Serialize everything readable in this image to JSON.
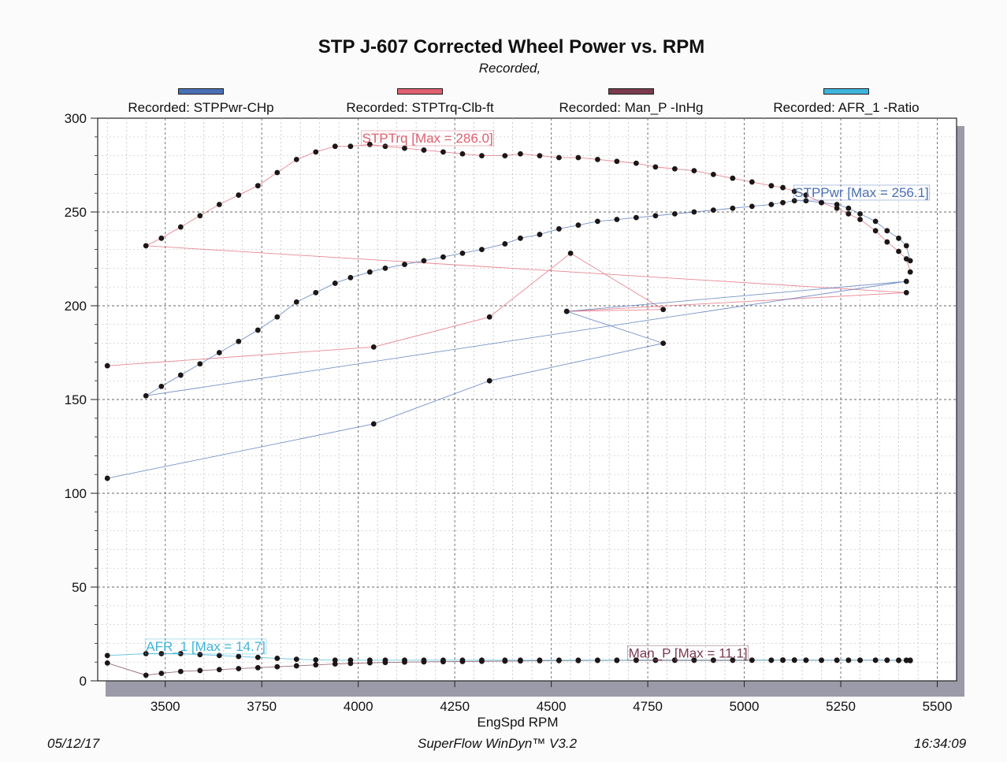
{
  "chart_data": {
    "type": "scatter",
    "title": "STP J-607 Corrected Wheel Power vs. RPM",
    "subtitle": "Recorded,",
    "xlabel": "EngSpd RPM",
    "ylabel": "",
    "xlim": [
      3325,
      5550
    ],
    "ylim": [
      0,
      300
    ],
    "x_ticks": [
      3500,
      3750,
      4000,
      4250,
      4500,
      4750,
      5000,
      5250,
      5500
    ],
    "y_ticks": [
      0,
      50,
      100,
      150,
      200,
      250,
      300
    ],
    "grid": true,
    "legend_position": "top",
    "legend": [
      {
        "label": "Recorded: STPPwr-CHp",
        "color": "#4a6fb5"
      },
      {
        "label": "Recorded: STPTrq-Clb-ft",
        "color": "#e06070"
      },
      {
        "label": "Recorded: Man_P -InHg",
        "color": "#7a3b4e"
      },
      {
        "label": "Recorded: AFR_1 -Ratio",
        "color": "#3fb4dc"
      }
    ],
    "annotations": [
      {
        "text": "STPTrq [Max = 286.0]",
        "x": 4010,
        "y": 287,
        "color": "#e06070"
      },
      {
        "text": "STPPwr [Max = 256.1]",
        "x": 5130,
        "y": 258,
        "color": "#4a6fb5"
      },
      {
        "text": "AFR_1  [Max = 14.7]",
        "x": 3450,
        "y": 16,
        "color": "#3fb4dc"
      },
      {
        "text": "Man_P  [Max = 11.1]",
        "x": 4700,
        "y": 12.5,
        "color": "#7a3b4e"
      }
    ],
    "series": [
      {
        "name": "STPTrq",
        "color": "#e06070",
        "points": [
          [
            3350,
            168
          ],
          [
            4040,
            178
          ],
          [
            4340,
            194
          ],
          [
            4550,
            228
          ],
          [
            4790,
            198
          ],
          [
            4540,
            197
          ],
          [
            5420,
            207
          ],
          [
            3450,
            232
          ],
          [
            3490,
            236
          ],
          [
            3540,
            242
          ],
          [
            3590,
            248
          ],
          [
            3640,
            254
          ],
          [
            3690,
            259
          ],
          [
            3740,
            264
          ],
          [
            3790,
            271
          ],
          [
            3840,
            278
          ],
          [
            3890,
            282
          ],
          [
            3940,
            285
          ],
          [
            3980,
            285
          ],
          [
            4030,
            286
          ],
          [
            4070,
            285
          ],
          [
            4120,
            284
          ],
          [
            4170,
            283
          ],
          [
            4220,
            282
          ],
          [
            4270,
            281
          ],
          [
            4320,
            280
          ],
          [
            4380,
            280
          ],
          [
            4420,
            281
          ],
          [
            4470,
            280
          ],
          [
            4520,
            279
          ],
          [
            4570,
            279
          ],
          [
            4620,
            278
          ],
          [
            4670,
            277
          ],
          [
            4720,
            276
          ],
          [
            4770,
            274
          ],
          [
            4820,
            273
          ],
          [
            4870,
            272
          ],
          [
            4920,
            270
          ],
          [
            4970,
            268
          ],
          [
            5020,
            266
          ],
          [
            5070,
            264
          ],
          [
            5100,
            263
          ],
          [
            5130,
            261
          ],
          [
            5160,
            259
          ],
          [
            5200,
            255
          ],
          [
            5240,
            252
          ],
          [
            5270,
            249
          ],
          [
            5300,
            246
          ],
          [
            5340,
            240
          ],
          [
            5370,
            234
          ],
          [
            5400,
            229
          ],
          [
            5420,
            225
          ],
          [
            5430,
            218
          ]
        ]
      },
      {
        "name": "STPPwr",
        "color": "#4a6fb5",
        "points": [
          [
            3350,
            108
          ],
          [
            4040,
            137
          ],
          [
            4340,
            160
          ],
          [
            4790,
            180
          ],
          [
            4540,
            197
          ],
          [
            5420,
            213
          ],
          [
            3450,
            152
          ],
          [
            3490,
            157
          ],
          [
            3540,
            163
          ],
          [
            3590,
            169
          ],
          [
            3640,
            175
          ],
          [
            3690,
            181
          ],
          [
            3740,
            187
          ],
          [
            3790,
            194
          ],
          [
            3840,
            202
          ],
          [
            3890,
            207
          ],
          [
            3940,
            212
          ],
          [
            3980,
            215
          ],
          [
            4030,
            218
          ],
          [
            4070,
            220
          ],
          [
            4120,
            222
          ],
          [
            4170,
            224
          ],
          [
            4220,
            226
          ],
          [
            4270,
            228
          ],
          [
            4320,
            230
          ],
          [
            4380,
            233
          ],
          [
            4420,
            236
          ],
          [
            4470,
            238
          ],
          [
            4520,
            241
          ],
          [
            4570,
            243
          ],
          [
            4620,
            245
          ],
          [
            4670,
            246
          ],
          [
            4720,
            247
          ],
          [
            4770,
            248
          ],
          [
            4820,
            249
          ],
          [
            4870,
            250
          ],
          [
            4920,
            251
          ],
          [
            4970,
            252
          ],
          [
            5020,
            253
          ],
          [
            5070,
            254
          ],
          [
            5100,
            255
          ],
          [
            5130,
            256
          ],
          [
            5160,
            256
          ],
          [
            5200,
            255
          ],
          [
            5240,
            254
          ],
          [
            5270,
            252
          ],
          [
            5300,
            249
          ],
          [
            5340,
            245
          ],
          [
            5370,
            240
          ],
          [
            5400,
            236
          ],
          [
            5420,
            232
          ],
          [
            5430,
            224
          ]
        ]
      },
      {
        "name": "Man_P",
        "color": "#7a3b4e",
        "points": [
          [
            3350,
            9.5
          ],
          [
            3450,
            3
          ],
          [
            3490,
            4
          ],
          [
            3540,
            5
          ],
          [
            3590,
            5.5
          ],
          [
            3640,
            6
          ],
          [
            3690,
            6.5
          ],
          [
            3740,
            7
          ],
          [
            3790,
            7.5
          ],
          [
            3840,
            8
          ],
          [
            3890,
            8.5
          ],
          [
            3940,
            9
          ],
          [
            3980,
            9.3
          ],
          [
            4030,
            9.6
          ],
          [
            4070,
            9.8
          ],
          [
            4120,
            10
          ],
          [
            4170,
            10.1
          ],
          [
            4220,
            10.2
          ],
          [
            4270,
            10.3
          ],
          [
            4320,
            10.4
          ],
          [
            4380,
            10.5
          ],
          [
            4420,
            10.6
          ],
          [
            4470,
            10.7
          ],
          [
            4520,
            10.8
          ],
          [
            4570,
            10.8
          ],
          [
            4620,
            10.9
          ],
          [
            4670,
            10.9
          ],
          [
            4720,
            11
          ],
          [
            4770,
            11
          ],
          [
            4820,
            11
          ],
          [
            4870,
            11
          ],
          [
            4920,
            11
          ],
          [
            4970,
            11
          ],
          [
            5020,
            11
          ],
          [
            5070,
            11
          ],
          [
            5100,
            11.1
          ],
          [
            5130,
            11.1
          ],
          [
            5160,
            11
          ],
          [
            5200,
            11
          ],
          [
            5240,
            11
          ],
          [
            5270,
            11
          ],
          [
            5300,
            11
          ],
          [
            5340,
            11
          ],
          [
            5370,
            11
          ],
          [
            5400,
            10.9
          ],
          [
            5420,
            10.9
          ],
          [
            5430,
            10.8
          ]
        ]
      },
      {
        "name": "AFR_1",
        "color": "#3fb4dc",
        "points": [
          [
            3350,
            13.5
          ],
          [
            3450,
            14.5
          ],
          [
            3490,
            14.5
          ],
          [
            3540,
            14.5
          ],
          [
            3590,
            14
          ],
          [
            3640,
            13.5
          ],
          [
            3690,
            13
          ],
          [
            3740,
            12.5
          ],
          [
            3790,
            12
          ],
          [
            3840,
            11.5
          ],
          [
            3890,
            11.2
          ],
          [
            3940,
            11
          ],
          [
            3980,
            11
          ],
          [
            4030,
            11
          ],
          [
            4070,
            11
          ],
          [
            4120,
            11
          ],
          [
            4170,
            11
          ],
          [
            4220,
            11
          ],
          [
            4270,
            11
          ],
          [
            4320,
            11
          ],
          [
            4380,
            11
          ],
          [
            4420,
            11
          ],
          [
            4470,
            11
          ],
          [
            4520,
            11
          ],
          [
            4570,
            11
          ],
          [
            4620,
            11
          ],
          [
            4670,
            11
          ],
          [
            4720,
            11
          ],
          [
            4770,
            11
          ],
          [
            4820,
            11
          ],
          [
            4870,
            11
          ],
          [
            4920,
            11
          ],
          [
            4970,
            11
          ],
          [
            5020,
            11
          ],
          [
            5070,
            11
          ],
          [
            5100,
            11
          ],
          [
            5130,
            11
          ],
          [
            5160,
            11
          ],
          [
            5200,
            11
          ],
          [
            5240,
            11
          ],
          [
            5270,
            11
          ],
          [
            5300,
            11
          ],
          [
            5340,
            11
          ],
          [
            5370,
            11
          ],
          [
            5400,
            11
          ],
          [
            5420,
            11
          ],
          [
            5430,
            11
          ]
        ]
      }
    ]
  },
  "footer": {
    "date": "05/12/17",
    "software": "SuperFlow WinDyn™ V3.2",
    "time": "16:34:09"
  }
}
